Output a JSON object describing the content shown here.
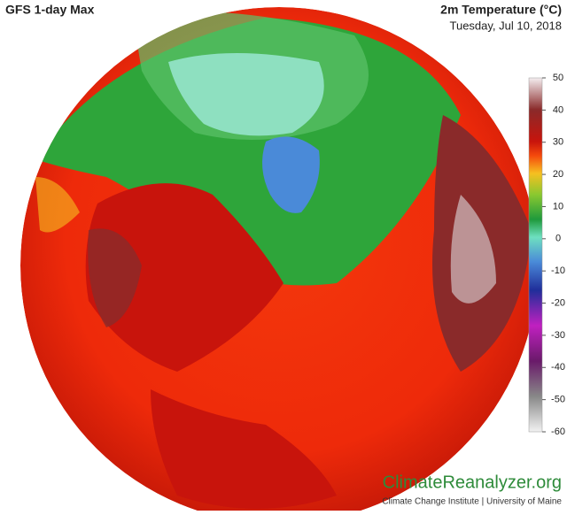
{
  "header": {
    "title": "GFS 1-day Max",
    "variable": "2m Temperature (°C)",
    "date": "Tuesday, Jul 10, 2018"
  },
  "colorbar": {
    "lim": [
      -60,
      50
    ],
    "ticks": [
      50,
      40,
      30,
      20,
      10,
      0,
      -10,
      -20,
      -30,
      -40,
      -50,
      -60
    ]
  },
  "footer": {
    "brand": "ClimateReanalyzer.org",
    "credit": "Climate Change Institute | University of Maine"
  }
}
